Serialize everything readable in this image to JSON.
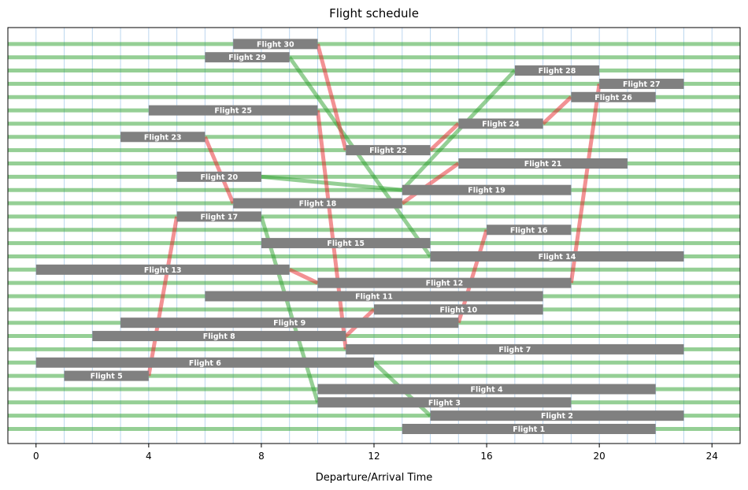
{
  "chart_data": {
    "type": "gantt",
    "title": "Flight schedule",
    "xlabel": "Departure/Arrival Time",
    "xlim": [
      -1,
      25
    ],
    "xticks": [
      0,
      4,
      8,
      12,
      16,
      20,
      24
    ],
    "minor_grid_step": 1,
    "colors": {
      "bar": "#808080",
      "ground_link": "#2ca02c",
      "connection_link": "#e8242a",
      "grid": "#9fc5e8"
    },
    "flights": [
      {
        "name": "Flight 1",
        "row": 1,
        "start": 13,
        "end": 22
      },
      {
        "name": "Flight 2",
        "row": 2,
        "start": 14,
        "end": 23
      },
      {
        "name": "Flight 3",
        "row": 3,
        "start": 10,
        "end": 19
      },
      {
        "name": "Flight 4",
        "row": 4,
        "start": 10,
        "end": 22
      },
      {
        "name": "Flight 5",
        "row": 5,
        "start": 1,
        "end": 4
      },
      {
        "name": "Flight 6",
        "row": 6,
        "start": 0,
        "end": 12
      },
      {
        "name": "Flight 7",
        "row": 7,
        "start": 11,
        "end": 23
      },
      {
        "name": "Flight 8",
        "row": 8,
        "start": 2,
        "end": 11
      },
      {
        "name": "Flight 9",
        "row": 9,
        "start": 3,
        "end": 15
      },
      {
        "name": "Flight 10",
        "row": 10,
        "start": 12,
        "end": 18
      },
      {
        "name": "Flight 11",
        "row": 11,
        "start": 6,
        "end": 18
      },
      {
        "name": "Flight 12",
        "row": 12,
        "start": 10,
        "end": 19
      },
      {
        "name": "Flight 13",
        "row": 13,
        "start": 0,
        "end": 9
      },
      {
        "name": "Flight 14",
        "row": 14,
        "start": 14,
        "end": 23
      },
      {
        "name": "Flight 15",
        "row": 15,
        "start": 8,
        "end": 14
      },
      {
        "name": "Flight 16",
        "row": 16,
        "start": 16,
        "end": 19
      },
      {
        "name": "Flight 17",
        "row": 17,
        "start": 5,
        "end": 8
      },
      {
        "name": "Flight 18",
        "row": 18,
        "start": 7,
        "end": 13
      },
      {
        "name": "Flight 19",
        "row": 19,
        "start": 13,
        "end": 19
      },
      {
        "name": "Flight 20",
        "row": 20,
        "start": 5,
        "end": 8
      },
      {
        "name": "Flight 21",
        "row": 21,
        "start": 15,
        "end": 21
      },
      {
        "name": "Flight 22",
        "row": 22,
        "start": 11,
        "end": 14
      },
      {
        "name": "Flight 23",
        "row": 23,
        "start": 3,
        "end": 6
      },
      {
        "name": "Flight 24",
        "row": 24,
        "start": 15,
        "end": 18
      },
      {
        "name": "Flight 25",
        "row": 25,
        "start": 4,
        "end": 10
      },
      {
        "name": "Flight 26",
        "row": 26,
        "start": 19,
        "end": 22
      },
      {
        "name": "Flight 27",
        "row": 27,
        "start": 20,
        "end": 23
      },
      {
        "name": "Flight 28",
        "row": 28,
        "start": 17,
        "end": 20
      },
      {
        "name": "Flight 29",
        "row": 29,
        "start": 6,
        "end": 9
      },
      {
        "name": "Flight 30",
        "row": 30,
        "start": 7,
        "end": 10
      }
    ],
    "ground_links": [
      {
        "row1": 29,
        "x1": 9,
        "row2": 14,
        "x2": 14
      },
      {
        "row1": 20,
        "x1": 8,
        "row2": 19,
        "x2": 13
      },
      {
        "row1": 17,
        "x1": 8,
        "row2": 3,
        "x2": 10
      },
      {
        "row1": 6,
        "x1": 12,
        "row2": 2,
        "x2": 14
      },
      {
        "row1": 19,
        "x1": 13,
        "row2": 28,
        "x2": 17
      }
    ],
    "connection_links": [
      {
        "row1": 30,
        "x1": 10,
        "row2": 22,
        "x2": 11
      },
      {
        "row1": 22,
        "x1": 14,
        "row2": 24,
        "x2": 15
      },
      {
        "row1": 24,
        "x1": 18,
        "row2": 26,
        "x2": 19
      },
      {
        "row1": 23,
        "x1": 6,
        "row2": 18,
        "x2": 7
      },
      {
        "row1": 18,
        "x1": 13,
        "row2": 21,
        "x2": 15
      },
      {
        "row1": 5,
        "x1": 4,
        "row2": 17,
        "x2": 5
      },
      {
        "row1": 13,
        "x1": 9,
        "row2": 12,
        "x2": 10
      },
      {
        "row1": 12,
        "x1": 19,
        "row2": 27,
        "x2": 20
      },
      {
        "row1": 25,
        "x1": 10,
        "row2": 7,
        "x2": 11
      },
      {
        "row1": 8,
        "x1": 11,
        "row2": 10,
        "x2": 12
      },
      {
        "row1": 9,
        "x1": 15,
        "row2": 16,
        "x2": 16
      }
    ]
  }
}
